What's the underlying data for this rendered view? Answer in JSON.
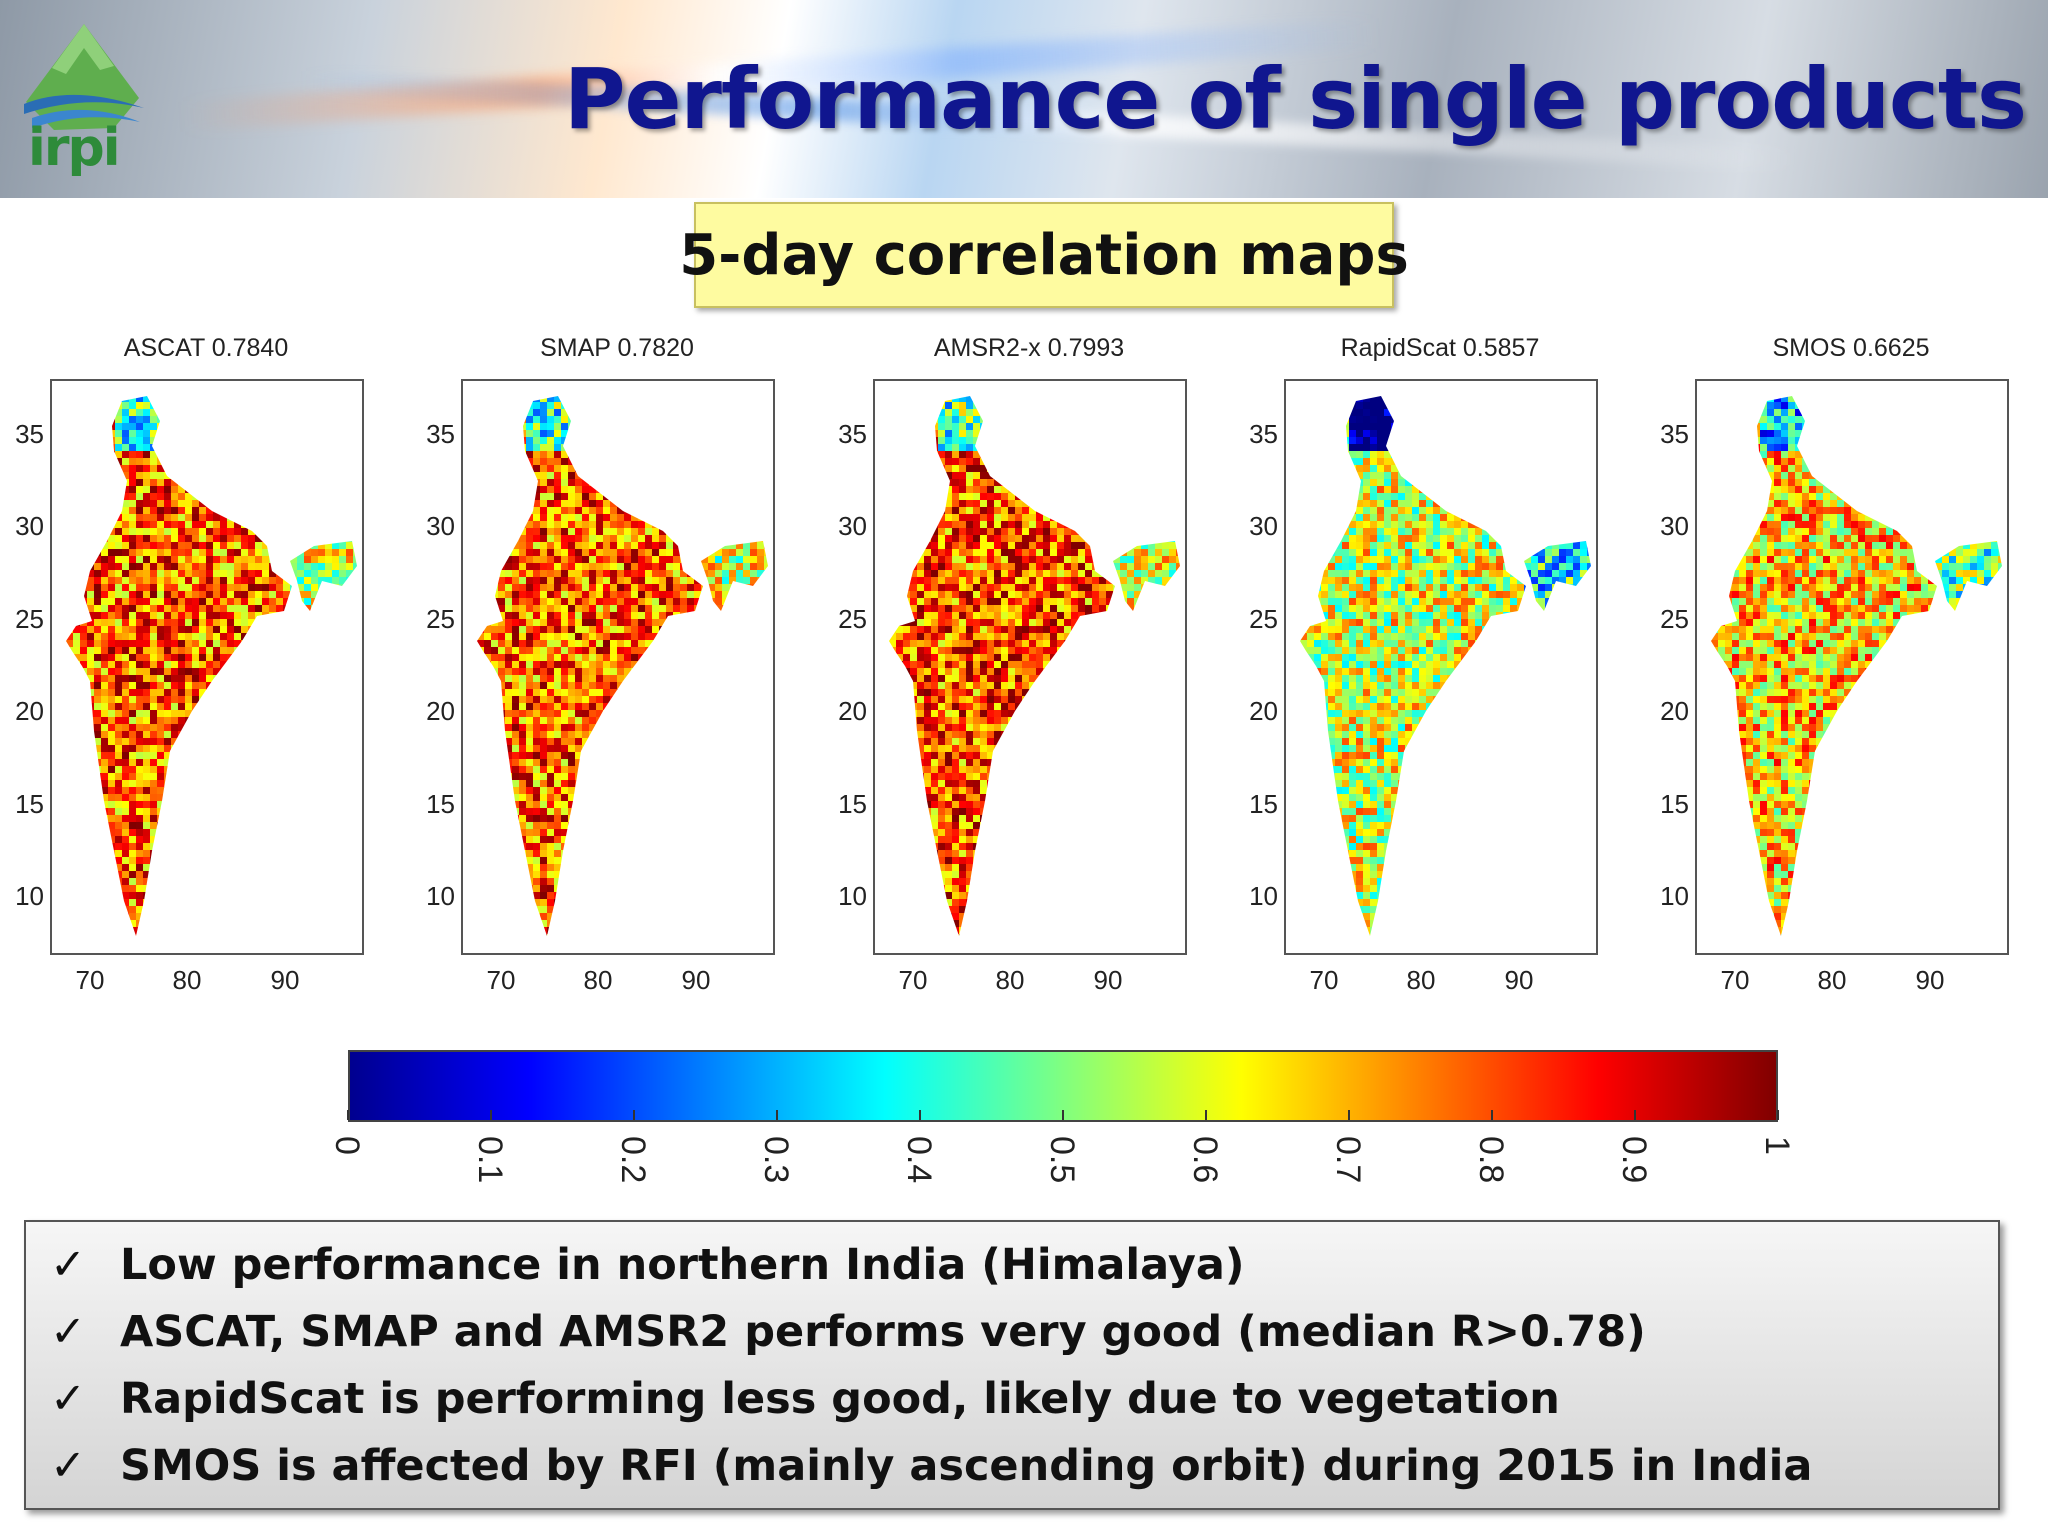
{
  "header": {
    "logo_text": "irpi",
    "title": "Performance of single products"
  },
  "subtitle": "5-day correlation maps",
  "chart_data": [
    {
      "type": "heatmap",
      "title": "ASCAT 0.7840",
      "xlim": [
        66,
        98
      ],
      "ylim": [
        5,
        38
      ],
      "xticks": [
        "70",
        "80",
        "90"
      ],
      "yticks": [
        "35",
        "30",
        "25",
        "20",
        "15",
        "10"
      ],
      "median_r": 0.784
    },
    {
      "type": "heatmap",
      "title": "SMAP 0.7820",
      "xlim": [
        66,
        98
      ],
      "ylim": [
        5,
        38
      ],
      "xticks": [
        "70",
        "80",
        "90"
      ],
      "yticks": [
        "35",
        "30",
        "25",
        "20",
        "15",
        "10"
      ],
      "median_r": 0.782
    },
    {
      "type": "heatmap",
      "title": "AMSR2-x 0.7993",
      "xlim": [
        66,
        98
      ],
      "ylim": [
        5,
        38
      ],
      "xticks": [
        "70",
        "80",
        "90"
      ],
      "yticks": [
        "35",
        "30",
        "25",
        "20",
        "15",
        "10"
      ],
      "median_r": 0.7993
    },
    {
      "type": "heatmap",
      "title": "RapidScat 0.5857",
      "xlim": [
        66,
        98
      ],
      "ylim": [
        5,
        38
      ],
      "xticks": [
        "70",
        "80",
        "90"
      ],
      "yticks": [
        "35",
        "30",
        "25",
        "20",
        "15",
        "10"
      ],
      "median_r": 0.5857
    },
    {
      "type": "heatmap",
      "title": "SMOS 0.6625",
      "xlim": [
        66,
        98
      ],
      "ylim": [
        5,
        38
      ],
      "xticks": [
        "70",
        "80",
        "90"
      ],
      "yticks": [
        "35",
        "30",
        "25",
        "20",
        "15",
        "10"
      ],
      "median_r": 0.6625
    }
  ],
  "colorbar": {
    "ticks": [
      "0",
      "0.1",
      "0.2",
      "0.3",
      "0.4",
      "0.5",
      "0.6",
      "0.7",
      "0.8",
      "0.9",
      "1"
    ],
    "range": [
      0,
      1
    ],
    "colormap": "jet"
  },
  "bullets": [
    {
      "check": "✓",
      "text": "Low performance in northern India (Himalaya)"
    },
    {
      "check": "✓",
      "text": "ASCAT, SMAP and AMSR2 performs very good (median R>0.78)"
    },
    {
      "check": "✓",
      "text": "RapidScat is performing less good, likely due to vegetation"
    },
    {
      "check": "✓",
      "text": "SMOS is affected by RFI (mainly ascending orbit) during 2015 in India"
    }
  ]
}
